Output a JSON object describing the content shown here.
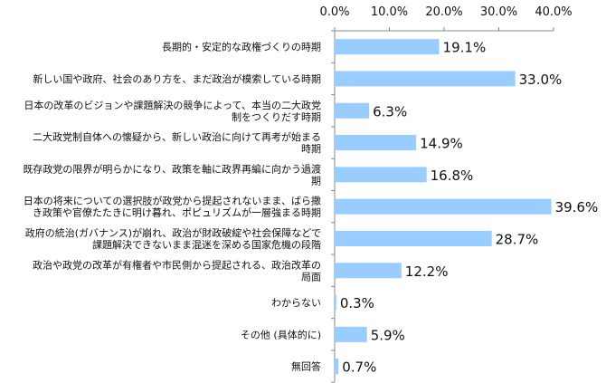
{
  "chart_data": {
    "type": "bar",
    "orientation": "horizontal",
    "categories": [
      [
        "長期的・安定的な政権づくりの時期"
      ],
      [
        "新しい国や政府、社会のあり方を、まだ政治が模索している時期"
      ],
      [
        "日本の改革のビジョンや課題解決の競争によって、本当の二大政党",
        "制をつくりだす時期"
      ],
      [
        "二大政党制自体への懐疑から、新しい政治に向けて再考が始まる",
        "時期"
      ],
      [
        "既存政党の限界が明らかになり、政策を軸に政界再編に向かう過渡",
        "期"
      ],
      [
        "日本の将来についての選択肢が政党から提起されないまま、ばら撒",
        "き政策や官僚たたきに明け暮れ、ポピュリズムが一層強まる時期"
      ],
      [
        "政府の統治(ガバナンス)が崩れ、政治が財政破綻や社会保障などで",
        "課題解決できないまま混迷を深める国家危機の段階"
      ],
      [
        "政治や政党の改革が有権者や市民側から提起される、政治改革の",
        "局面"
      ],
      [
        "わからない"
      ],
      [
        "その他 (具体的に)"
      ],
      [
        "無回答"
      ]
    ],
    "values": [
      19.1,
      33.0,
      6.3,
      14.9,
      16.8,
      39.6,
      28.7,
      12.2,
      0.3,
      5.9,
      0.7
    ],
    "value_labels": [
      "19.1%",
      "33.0%",
      "6.3%",
      "14.9%",
      "16.8%",
      "39.6%",
      "28.7%",
      "12.2%",
      "0.3%",
      "5.9%",
      "0.7%"
    ],
    "xlim": [
      0,
      40
    ],
    "ticks": [
      0,
      10,
      20,
      30,
      40
    ],
    "tick_labels": [
      "0.0%",
      "10.0%",
      "20.0%",
      "30.0%",
      "40.0%"
    ],
    "axis_position": "top",
    "grid": false,
    "bar_color": "#99ccff"
  }
}
